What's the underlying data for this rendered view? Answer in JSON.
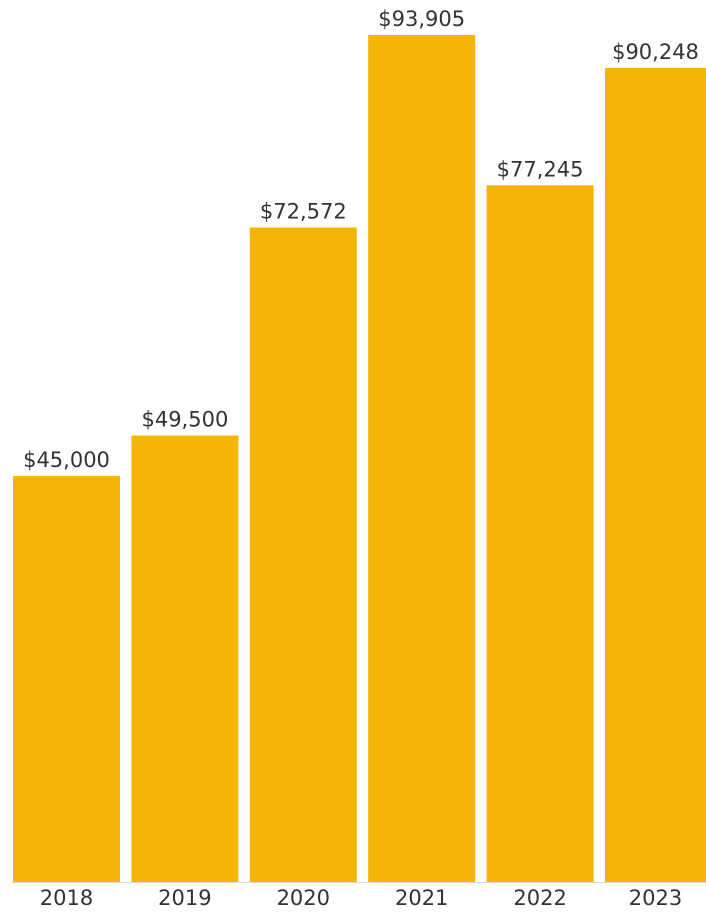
{
  "chart_data": {
    "type": "bar",
    "categories": [
      "2018",
      "2019",
      "2020",
      "2021",
      "2022",
      "2023"
    ],
    "values": [
      45000,
      49500,
      72572,
      93905,
      77245,
      90248
    ],
    "value_labels": [
      "$45,000",
      "$49,500",
      "$72,572",
      "$93,905",
      "$77,245",
      "$90,248"
    ],
    "color": "#f5b508"
  }
}
